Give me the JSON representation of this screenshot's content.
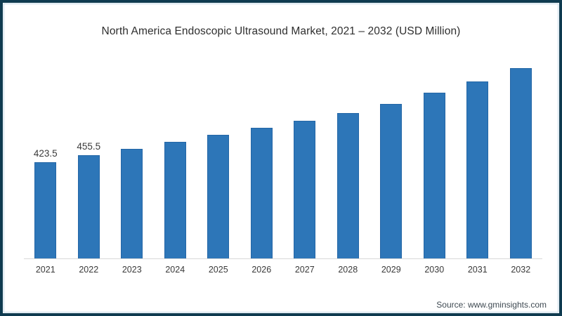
{
  "title": "North America Endoscopic Ultrasound Market, 2021 – 2032 (USD Million)",
  "source": "Source: www.gminsights.com",
  "frame": {
    "border_color": "#0f3b50",
    "inner_line_color": "#c5d9e7",
    "background": "#ffffff"
  },
  "chart_data": {
    "type": "bar",
    "title": "North America Endoscopic Ultrasound Market, 2021 – 2032 (USD Million)",
    "categories": [
      "2021",
      "2022",
      "2023",
      "2024",
      "2025",
      "2026",
      "2027",
      "2028",
      "2029",
      "2030",
      "2031",
      "2032"
    ],
    "values": [
      423.5,
      455.5,
      481,
      512,
      542,
      573,
      604,
      639,
      678,
      728,
      777,
      836
    ],
    "value_labels": [
      "423.5",
      "455.5",
      "",
      "",
      "",
      "",
      "",
      "",
      "",
      "",
      "",
      ""
    ],
    "xlabel": "",
    "ylabel": "",
    "ylim": [
      0,
      900
    ],
    "grid": false,
    "legend": false,
    "bar_color": "#2d76b8",
    "bar_border_color": "#2466a6",
    "axis_line_color": "#d9d9d9",
    "label_color": "#3a3a3a"
  }
}
